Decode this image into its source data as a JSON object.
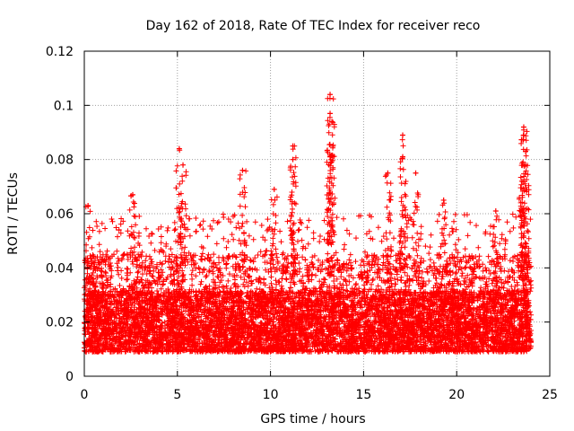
{
  "chart_data": {
    "type": "scatter",
    "title": "Day 162 of 2018, Rate Of TEC Index for receiver reco",
    "xlabel": "GPS time / hours",
    "ylabel": "ROTI / TECUs",
    "xlim": [
      0,
      25
    ],
    "ylim": [
      0,
      0.12
    ],
    "xticks": [
      0,
      5,
      10,
      15,
      20,
      25
    ],
    "xtick_labels": [
      "0",
      "5",
      "10",
      "15",
      "20",
      "25"
    ],
    "yticks": [
      0,
      0.02,
      0.04,
      0.06,
      0.08,
      0.1,
      0.12
    ],
    "ytick_labels": [
      "0",
      "0.02",
      "0.04",
      "0.06",
      "0.08",
      "0.1",
      "0.12"
    ],
    "grid": true,
    "marker": "+",
    "color": "#ff0000",
    "data_x_range": [
      0,
      24
    ],
    "baseline_band": [
      0.005,
      0.035
    ],
    "notable_peaks": [
      {
        "x": 0.2,
        "y": 0.063
      },
      {
        "x": 2.6,
        "y": 0.067
      },
      {
        "x": 5.1,
        "y": 0.084
      },
      {
        "x": 5.3,
        "y": 0.078
      },
      {
        "x": 8.5,
        "y": 0.076
      },
      {
        "x": 10.2,
        "y": 0.069
      },
      {
        "x": 11.2,
        "y": 0.085
      },
      {
        "x": 11.2,
        "y": 0.08
      },
      {
        "x": 13.2,
        "y": 0.104
      },
      {
        "x": 13.2,
        "y": 0.097
      },
      {
        "x": 13.3,
        "y": 0.094
      },
      {
        "x": 13.2,
        "y": 0.081
      },
      {
        "x": 16.3,
        "y": 0.075
      },
      {
        "x": 17.1,
        "y": 0.089
      },
      {
        "x": 17.1,
        "y": 0.081
      },
      {
        "x": 17.8,
        "y": 0.075
      },
      {
        "x": 19.3,
        "y": 0.065
      },
      {
        "x": 22.1,
        "y": 0.061
      },
      {
        "x": 23.6,
        "y": 0.092
      },
      {
        "x": 23.6,
        "y": 0.089
      },
      {
        "x": 23.7,
        "y": 0.083
      },
      {
        "x": 23.7,
        "y": 0.078
      },
      {
        "x": 23.5,
        "y": 0.072
      },
      {
        "x": 23.6,
        "y": 0.062
      }
    ]
  }
}
